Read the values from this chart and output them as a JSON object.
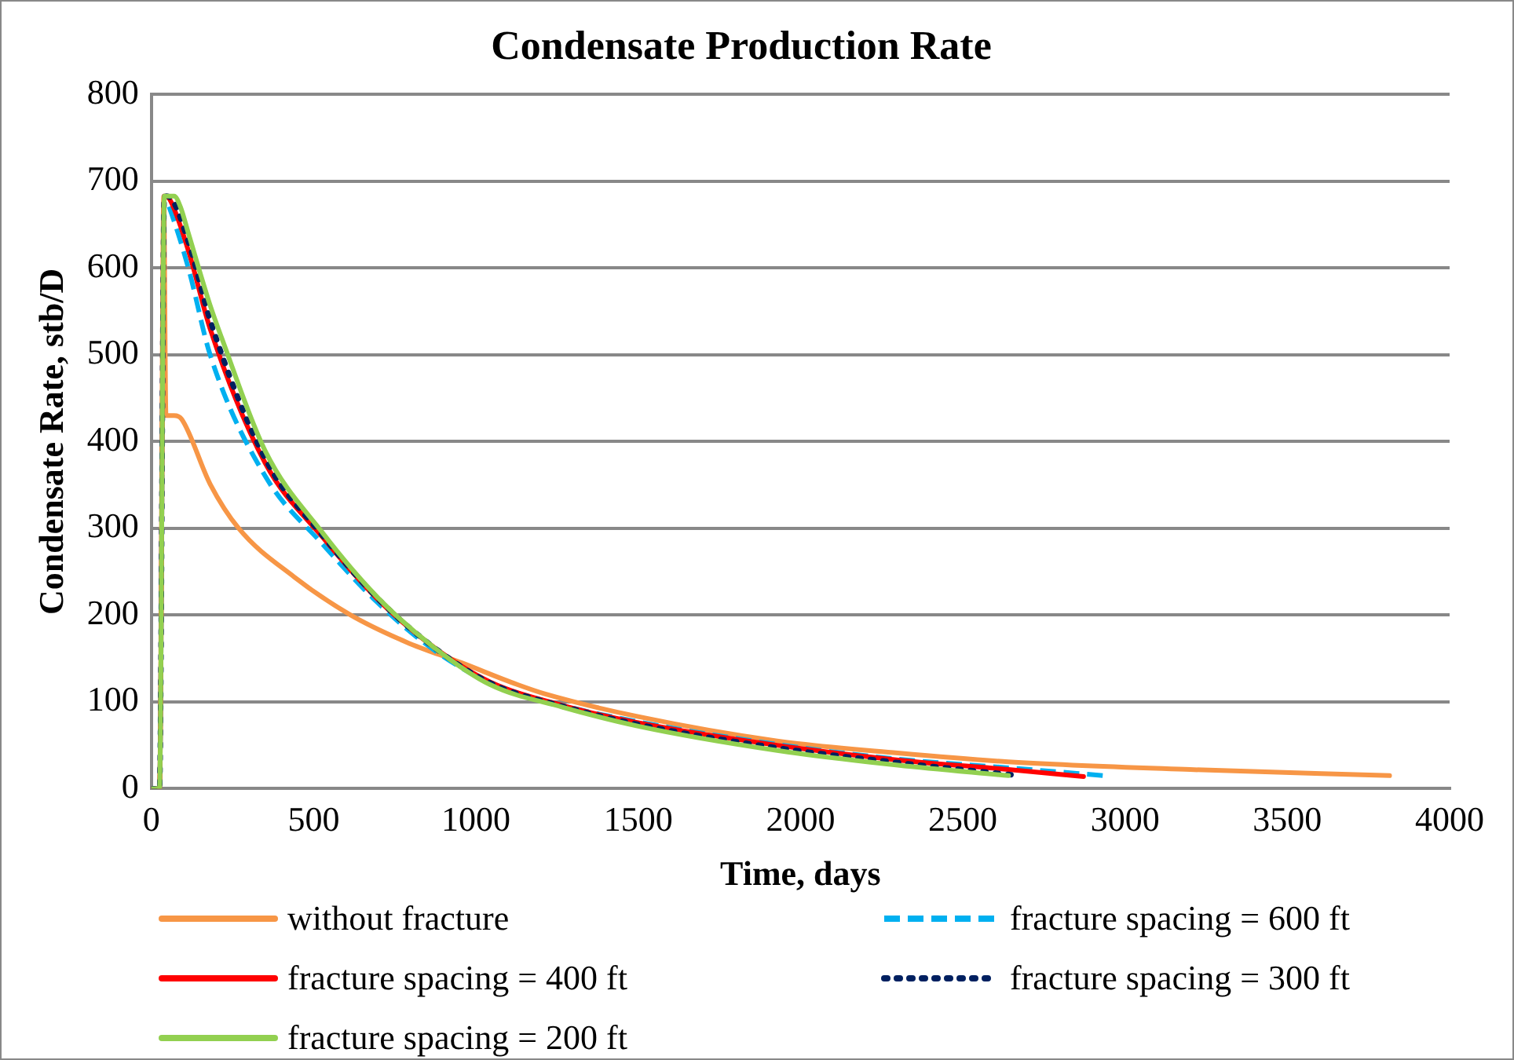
{
  "chart_data": {
    "type": "line",
    "title": "Condensate Production Rate",
    "xlabel": "Time, days",
    "ylabel": "Condensate Rate, stb/D",
    "xlim": [
      0,
      4000
    ],
    "xticks": [
      0,
      500,
      1000,
      1500,
      2000,
      2500,
      3000,
      3500,
      4000
    ],
    "ylim": [
      0,
      800
    ],
    "yticks": [
      0,
      100,
      200,
      300,
      400,
      500,
      600,
      700,
      800
    ],
    "grid": "y",
    "legend": "bottom",
    "marker": "none",
    "series": [
      {
        "name": "without fracture",
        "color": "#f79646",
        "line_style": "solid",
        "x": [
          0,
          25,
          38,
          45,
          70,
          93,
          181,
          269,
          440,
          610,
          785,
          956,
          1127,
          1214,
          1500,
          1928,
          2300,
          2640,
          3200,
          3815
        ],
        "values": [
          0,
          0,
          683,
          430,
          430,
          426,
          351,
          300,
          244,
          201,
          169,
          145,
          120,
          109,
          83,
          55,
          41,
          31,
          22,
          15
        ]
      },
      {
        "name": "fracture spacing = 600 ft",
        "color": "#00b0f0",
        "line_style": "dashed",
        "x": [
          0,
          25,
          40,
          55,
          114,
          181,
          351,
          527,
          698,
          870,
          1043,
          1266,
          1500,
          1928,
          2300,
          2641,
          2934
        ],
        "values": [
          0,
          0,
          683,
          670,
          600,
          500,
          360,
          282,
          214,
          160,
          122,
          96,
          77,
          51,
          34,
          24,
          15
        ]
      },
      {
        "name": "fracture spacing = 400 ft",
        "color": "#ff0000",
        "line_style": "solid",
        "x": [
          0,
          25,
          40,
          55,
          114,
          181,
          351,
          527,
          698,
          870,
          1043,
          1266,
          1500,
          1928,
          2300,
          2641,
          2872
        ],
        "values": [
          0,
          0,
          683,
          680,
          620,
          530,
          375,
          290,
          218,
          163,
          123,
          96,
          76,
          50,
          33,
          22,
          14
        ]
      },
      {
        "name": "fracture spacing = 300 ft",
        "color": "#002060",
        "line_style": "dotted",
        "x": [
          0,
          25,
          40,
          55,
          114,
          181,
          351,
          527,
          698,
          870,
          1043,
          1266,
          1500,
          1928,
          2300,
          2650
        ],
        "values": [
          0,
          0,
          683,
          682,
          630,
          540,
          380,
          292,
          219,
          163,
          122,
          95,
          74,
          47,
          30,
          16
        ]
      },
      {
        "name": "fracture spacing = 200 ft",
        "color": "#92d050",
        "line_style": "solid",
        "x": [
          0,
          25,
          40,
          70,
          90,
          114,
          181,
          216,
          351,
          527,
          698,
          870,
          1043,
          1266,
          1500,
          1928,
          2300,
          2641
        ],
        "values": [
          0,
          0,
          683,
          683,
          670,
          640,
          557,
          520,
          389,
          295,
          220,
          163,
          120,
          94,
          72,
          44,
          27,
          15
        ]
      }
    ]
  }
}
